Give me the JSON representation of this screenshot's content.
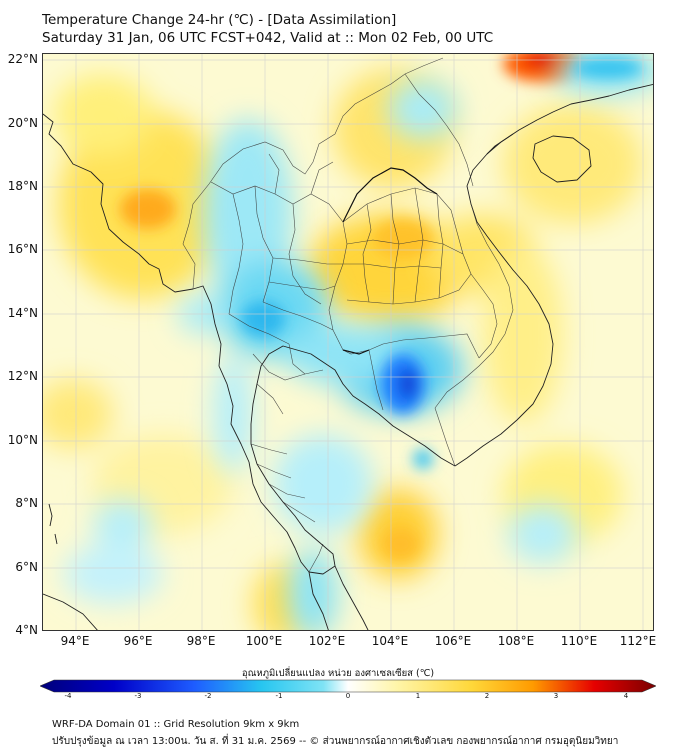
{
  "header": {
    "title_line1": "Temperature Change 24-hr (℃) - [Data Assimilation]",
    "title_line2": "Saturday 31 Jan, 06 UTC FCST+042, Valid at :: Mon 02 Feb, 00 UTC"
  },
  "axes": {
    "lat_labels": [
      "22°N",
      "20°N",
      "18°N",
      "16°N",
      "14°N",
      "12°N",
      "10°N",
      "8°N",
      "6°N",
      "4°N"
    ],
    "lon_labels": [
      "94°E",
      "96°E",
      "98°E",
      "100°E",
      "102°E",
      "104°E",
      "106°E",
      "108°E",
      "110°E",
      "112°E"
    ]
  },
  "colorbar": {
    "title": "อุณหภูมิเปลี่ยนแปลง หน่วย องศาเซลเซียส (℃)",
    "tick_labels": [
      "-4",
      "-3",
      "-2",
      "-1",
      "0",
      "1",
      "2",
      "3",
      "4"
    ],
    "colors": [
      "#00007a",
      "#0000c8",
      "#1e5cff",
      "#27c6f0",
      "#7fe3f5",
      "#ffffff",
      "#fff5a8",
      "#ffd83a",
      "#ff9b00",
      "#e60000",
      "#7a0000"
    ]
  },
  "footer": {
    "line1": "WRF-DA Domain 01 :: Grid Resolution 9km x 9km",
    "line2": "ปรับปรุงข้อมูล ณ เวลา 13:00น. วัน ส. ที่ 31 ม.ค. 2569 -- © ส่วนพยากรณ์อากาศเชิงตัวเลข กองพยากรณ์อากาศ กรมอุตุนิยมวิทยา"
  }
}
